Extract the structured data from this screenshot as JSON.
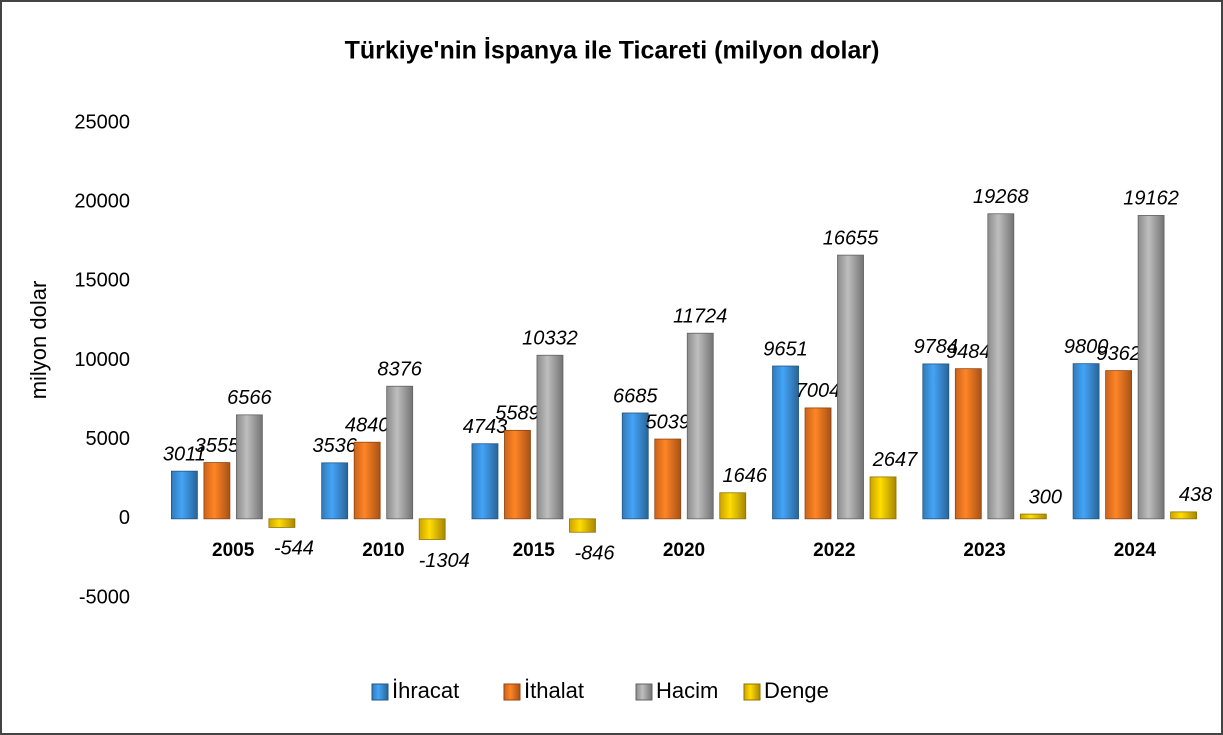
{
  "chart_data": {
    "type": "bar",
    "title": "Türkiye'nin İspanya ile Ticareti (milyon dolar)",
    "y_label": "milyon dolar",
    "categories": [
      "2005",
      "2010",
      "2015",
      "2020",
      "2022",
      "2023",
      "2024"
    ],
    "series": [
      {
        "name": "İhracat",
        "color": "#3b8fd8",
        "values": [
          3011,
          3536,
          4743,
          6685,
          9651,
          9784,
          9800
        ]
      },
      {
        "name": "İthalat",
        "color": "#ee7420",
        "values": [
          3555,
          4840,
          5589,
          5039,
          7004,
          9484,
          9362
        ]
      },
      {
        "name": "Hacim",
        "color": "#a5a5a5",
        "values": [
          6566,
          8376,
          10332,
          11724,
          16655,
          19268,
          19162
        ]
      },
      {
        "name": "Denge",
        "color": "#f0c000",
        "values": [
          -544,
          -1304,
          -846,
          1646,
          2647,
          300,
          438
        ]
      }
    ],
    "ylim": [
      -5000,
      25000
    ],
    "yticks": [
      -5000,
      0,
      5000,
      10000,
      15000,
      20000,
      25000
    ],
    "grid": false,
    "legend": "bottom"
  }
}
